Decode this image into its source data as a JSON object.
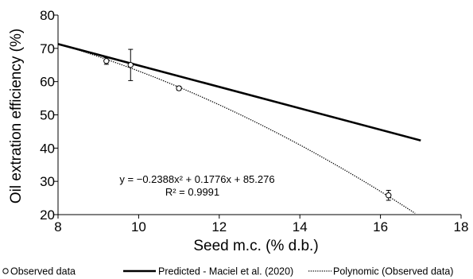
{
  "chart_data": {
    "type": "line",
    "xlabel": "Seed m.c. (% d.b.)",
    "ylabel": "Oil extration efficiency (%)",
    "xlim": [
      8,
      18
    ],
    "ylim": [
      20,
      80
    ],
    "xticks": [
      8,
      10,
      12,
      14,
      16,
      18
    ],
    "yticks": [
      20,
      30,
      40,
      50,
      60,
      70,
      80
    ],
    "grid": false,
    "legend_position": "bottom",
    "annotation": {
      "equation": "y = −0.2388x² + 0.1776x + 85.276",
      "r_squared": "R² = 0.9991"
    },
    "series": [
      {
        "name": "Observed data",
        "kind": "scatter",
        "points": [
          {
            "x": 9.2,
            "y": 66.2,
            "err": 1.0
          },
          {
            "x": 9.8,
            "y": 65.0,
            "err": 4.7
          },
          {
            "x": 11.0,
            "y": 58.0,
            "err": 0.6
          },
          {
            "x": 16.2,
            "y": 25.8,
            "err": 1.5
          }
        ]
      },
      {
        "name": "Predicted - Maciel et al. (2020)",
        "kind": "line",
        "style": "solid",
        "x": [
          8,
          17
        ],
        "y": [
          71.3,
          42.3
        ]
      },
      {
        "name": "Polynomic (Observed data)",
        "kind": "line",
        "style": "dotted",
        "coefficients": [
          -0.2388,
          0.1776,
          85.276
        ],
        "x_range": [
          8,
          16.86
        ]
      }
    ]
  }
}
